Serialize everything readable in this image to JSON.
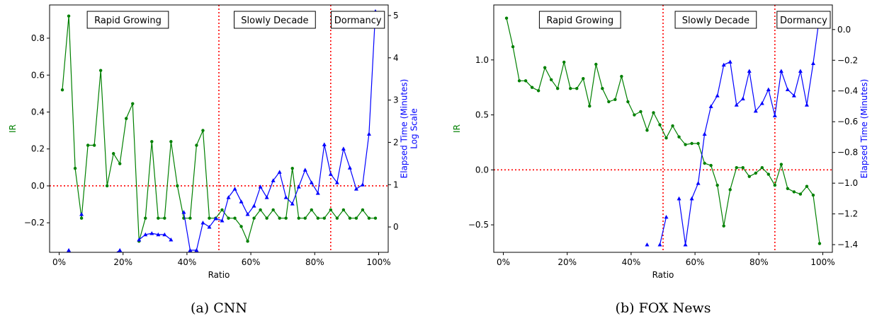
{
  "chart_data": [
    {
      "type": "line",
      "caption": "(a) CNN",
      "xlabel": "Ratio",
      "ylabel": "IR",
      "y2label_lines": [
        "Elapsed Time (Minutes)",
        "Log Scale"
      ],
      "x_ticks": [
        0,
        20,
        40,
        60,
        80,
        100
      ],
      "x_tick_labels": [
        "0%",
        "20%",
        "40%",
        "60%",
        "80%",
        "100%"
      ],
      "xlim": [
        -3,
        103
      ],
      "ylim": [
        -0.36,
        0.98
      ],
      "y_ticks": [
        -0.2,
        0.0,
        0.2,
        0.4,
        0.6,
        0.8
      ],
      "y_tick_labels": [
        "−0.2",
        "0.0",
        "0.2",
        "0.4",
        "0.6",
        "0.8"
      ],
      "y2lim": [
        -0.6,
        5.25
      ],
      "y2_ticks": [
        0,
        1,
        2,
        3,
        4,
        5
      ],
      "y2_tick_labels": [
        "0",
        "1",
        "2",
        "3",
        "4",
        "5"
      ],
      "hline_y": 0.0,
      "vlines_x": [
        50,
        85
      ],
      "phase_labels": [
        {
          "text": "Rapid Growing",
          "x": 21.5
        },
        {
          "text": "Slowly Decade",
          "x": 67.5
        },
        {
          "text": "Dormancy",
          "x": 93.5
        }
      ],
      "series": [
        {
          "axis": "left",
          "color": "#008000",
          "marker": "circle",
          "x": [
            1,
            3,
            5,
            7,
            9,
            11,
            13,
            15,
            17,
            19,
            21,
            23,
            25,
            27,
            29,
            31,
            33,
            35,
            37,
            39,
            41,
            43,
            45,
            47,
            49,
            51,
            53,
            55,
            57,
            59,
            61,
            63,
            65,
            67,
            69,
            71,
            73,
            75,
            77,
            79,
            81,
            83,
            85,
            87,
            89,
            91,
            93,
            95,
            97,
            99
          ],
          "values": [
            0.52,
            0.92,
            0.095,
            -0.175,
            0.22,
            0.22,
            0.625,
            0.0,
            0.175,
            0.12,
            0.365,
            0.445,
            -0.3,
            -0.175,
            0.24,
            -0.175,
            -0.175,
            0.24,
            0.0,
            -0.175,
            -0.175,
            0.22,
            0.3,
            -0.175,
            -0.175,
            -0.13,
            -0.175,
            -0.175,
            -0.22,
            -0.3,
            -0.175,
            -0.13,
            -0.175,
            -0.13,
            -0.175,
            -0.175,
            0.095,
            -0.175,
            -0.175,
            -0.13,
            -0.175,
            -0.175,
            -0.13,
            -0.175,
            -0.13,
            -0.175,
            -0.175,
            -0.13,
            -0.175,
            -0.175
          ]
        },
        {
          "axis": "right",
          "color": "#0000ff",
          "marker": "triangle",
          "segments": [
            {
              "x": [
                3
              ],
              "values": [
                -0.55
              ]
            },
            {
              "x": [
                7
              ],
              "values": [
                0.3
              ]
            },
            {
              "x": [
                17,
                19
              ],
              "values": [
                -0.65,
                -0.55
              ]
            },
            {
              "x": [
                25,
                27,
                29,
                31,
                33,
                35
              ],
              "values": [
                -0.3,
                -0.18,
                -0.15,
                -0.18,
                -0.18,
                -0.3
              ]
            },
            {
              "x": [
                39,
                41,
                43,
                45,
                47,
                49,
                51,
                53,
                55,
                57,
                59,
                61,
                63,
                65,
                67,
                69,
                71,
                73,
                75,
                77,
                79,
                81,
                83,
                85,
                87,
                89,
                91,
                93,
                95,
                97,
                99
              ],
              "values": [
                0.35,
                -0.55,
                -0.55,
                0.1,
                0.0,
                0.2,
                0.15,
                0.7,
                0.9,
                0.6,
                0.3,
                0.5,
                0.95,
                0.7,
                1.1,
                1.3,
                0.7,
                0.55,
                0.95,
                1.35,
                1.05,
                0.8,
                1.95,
                1.25,
                1.05,
                1.85,
                1.4,
                0.9,
                1.0,
                2.2,
                5.1
              ]
            }
          ]
        }
      ]
    },
    {
      "type": "line",
      "caption": "(b) FOX News",
      "xlabel": "Ratio",
      "ylabel": "IR",
      "y2label_lines": [
        "Elapsed Time (Minutes)"
      ],
      "x_ticks": [
        0,
        20,
        40,
        60,
        80,
        100
      ],
      "x_tick_labels": [
        "0%",
        "20%",
        "40%",
        "60%",
        "80%",
        "100%"
      ],
      "xlim": [
        -3,
        103
      ],
      "ylim": [
        -0.75,
        1.5
      ],
      "y_ticks": [
        -0.5,
        0.0,
        0.5,
        1.0
      ],
      "y_tick_labels": [
        "−0.5",
        "0.0",
        "0.5",
        "1.0"
      ],
      "y2lim": [
        -1.45,
        0.16
      ],
      "y2_ticks": [
        -1.4,
        -1.2,
        -1.0,
        -0.8,
        -0.6,
        -0.4,
        -0.2,
        0.0
      ],
      "y2_tick_labels": [
        "−1.4",
        "−1.2",
        "−1.0",
        "−0.8",
        "−0.6",
        "−0.4",
        "−0.2",
        "0.0"
      ],
      "hline_y": 0.0,
      "vlines_x": [
        50,
        85
      ],
      "phase_labels": [
        {
          "text": "Rapid Growing",
          "x": 24
        },
        {
          "text": "Slowly Decade",
          "x": 66.5
        },
        {
          "text": "Dormancy",
          "x": 94
        }
      ],
      "series": [
        {
          "axis": "left",
          "color": "#008000",
          "marker": "circle",
          "x": [
            1,
            3,
            5,
            7,
            9,
            11,
            13,
            15,
            17,
            19,
            21,
            23,
            25,
            27,
            29,
            31,
            33,
            35,
            37,
            39,
            41,
            43,
            45,
            47,
            49,
            51,
            53,
            55,
            57,
            59,
            61,
            63,
            65,
            67,
            69,
            71,
            73,
            75,
            77,
            79,
            81,
            83,
            85,
            87,
            89,
            91,
            93,
            95,
            97,
            99
          ],
          "values": [
            1.38,
            1.12,
            0.81,
            0.81,
            0.75,
            0.72,
            0.93,
            0.82,
            0.74,
            0.98,
            0.74,
            0.74,
            0.83,
            0.58,
            0.96,
            0.74,
            0.62,
            0.64,
            0.85,
            0.62,
            0.5,
            0.53,
            0.36,
            0.52,
            0.41,
            0.29,
            0.4,
            0.3,
            0.23,
            0.24,
            0.24,
            0.06,
            0.04,
            -0.14,
            -0.51,
            -0.18,
            0.02,
            0.02,
            -0.06,
            -0.03,
            0.02,
            -0.04,
            -0.14,
            0.05,
            -0.17,
            -0.2,
            -0.22,
            -0.15,
            -0.23,
            -0.67
          ]
        },
        {
          "axis": "right",
          "color": "#0000ff",
          "marker": "triangle",
          "segments": [
            {
              "x": [
                45
              ],
              "values": [
                -1.4
              ]
            },
            {
              "x": [
                49,
                51
              ],
              "values": [
                -1.4,
                -1.22
              ]
            },
            {
              "x": [
                55,
                57,
                59,
                61,
                63,
                65,
                67,
                69,
                71,
                73,
                75,
                77,
                79,
                81,
                83,
                85,
                87,
                89,
                91,
                93,
                95,
                97,
                99
              ],
              "values": [
                -1.1,
                -1.4,
                -1.1,
                -1.0,
                -0.68,
                -0.5,
                -0.43,
                -0.23,
                -0.21,
                -0.49,
                -0.45,
                -0.27,
                -0.53,
                -0.48,
                -0.39,
                -0.56,
                -0.27,
                -0.39,
                -0.43,
                -0.27,
                -0.49,
                -0.22,
                0.09
              ]
            }
          ]
        }
      ]
    }
  ]
}
